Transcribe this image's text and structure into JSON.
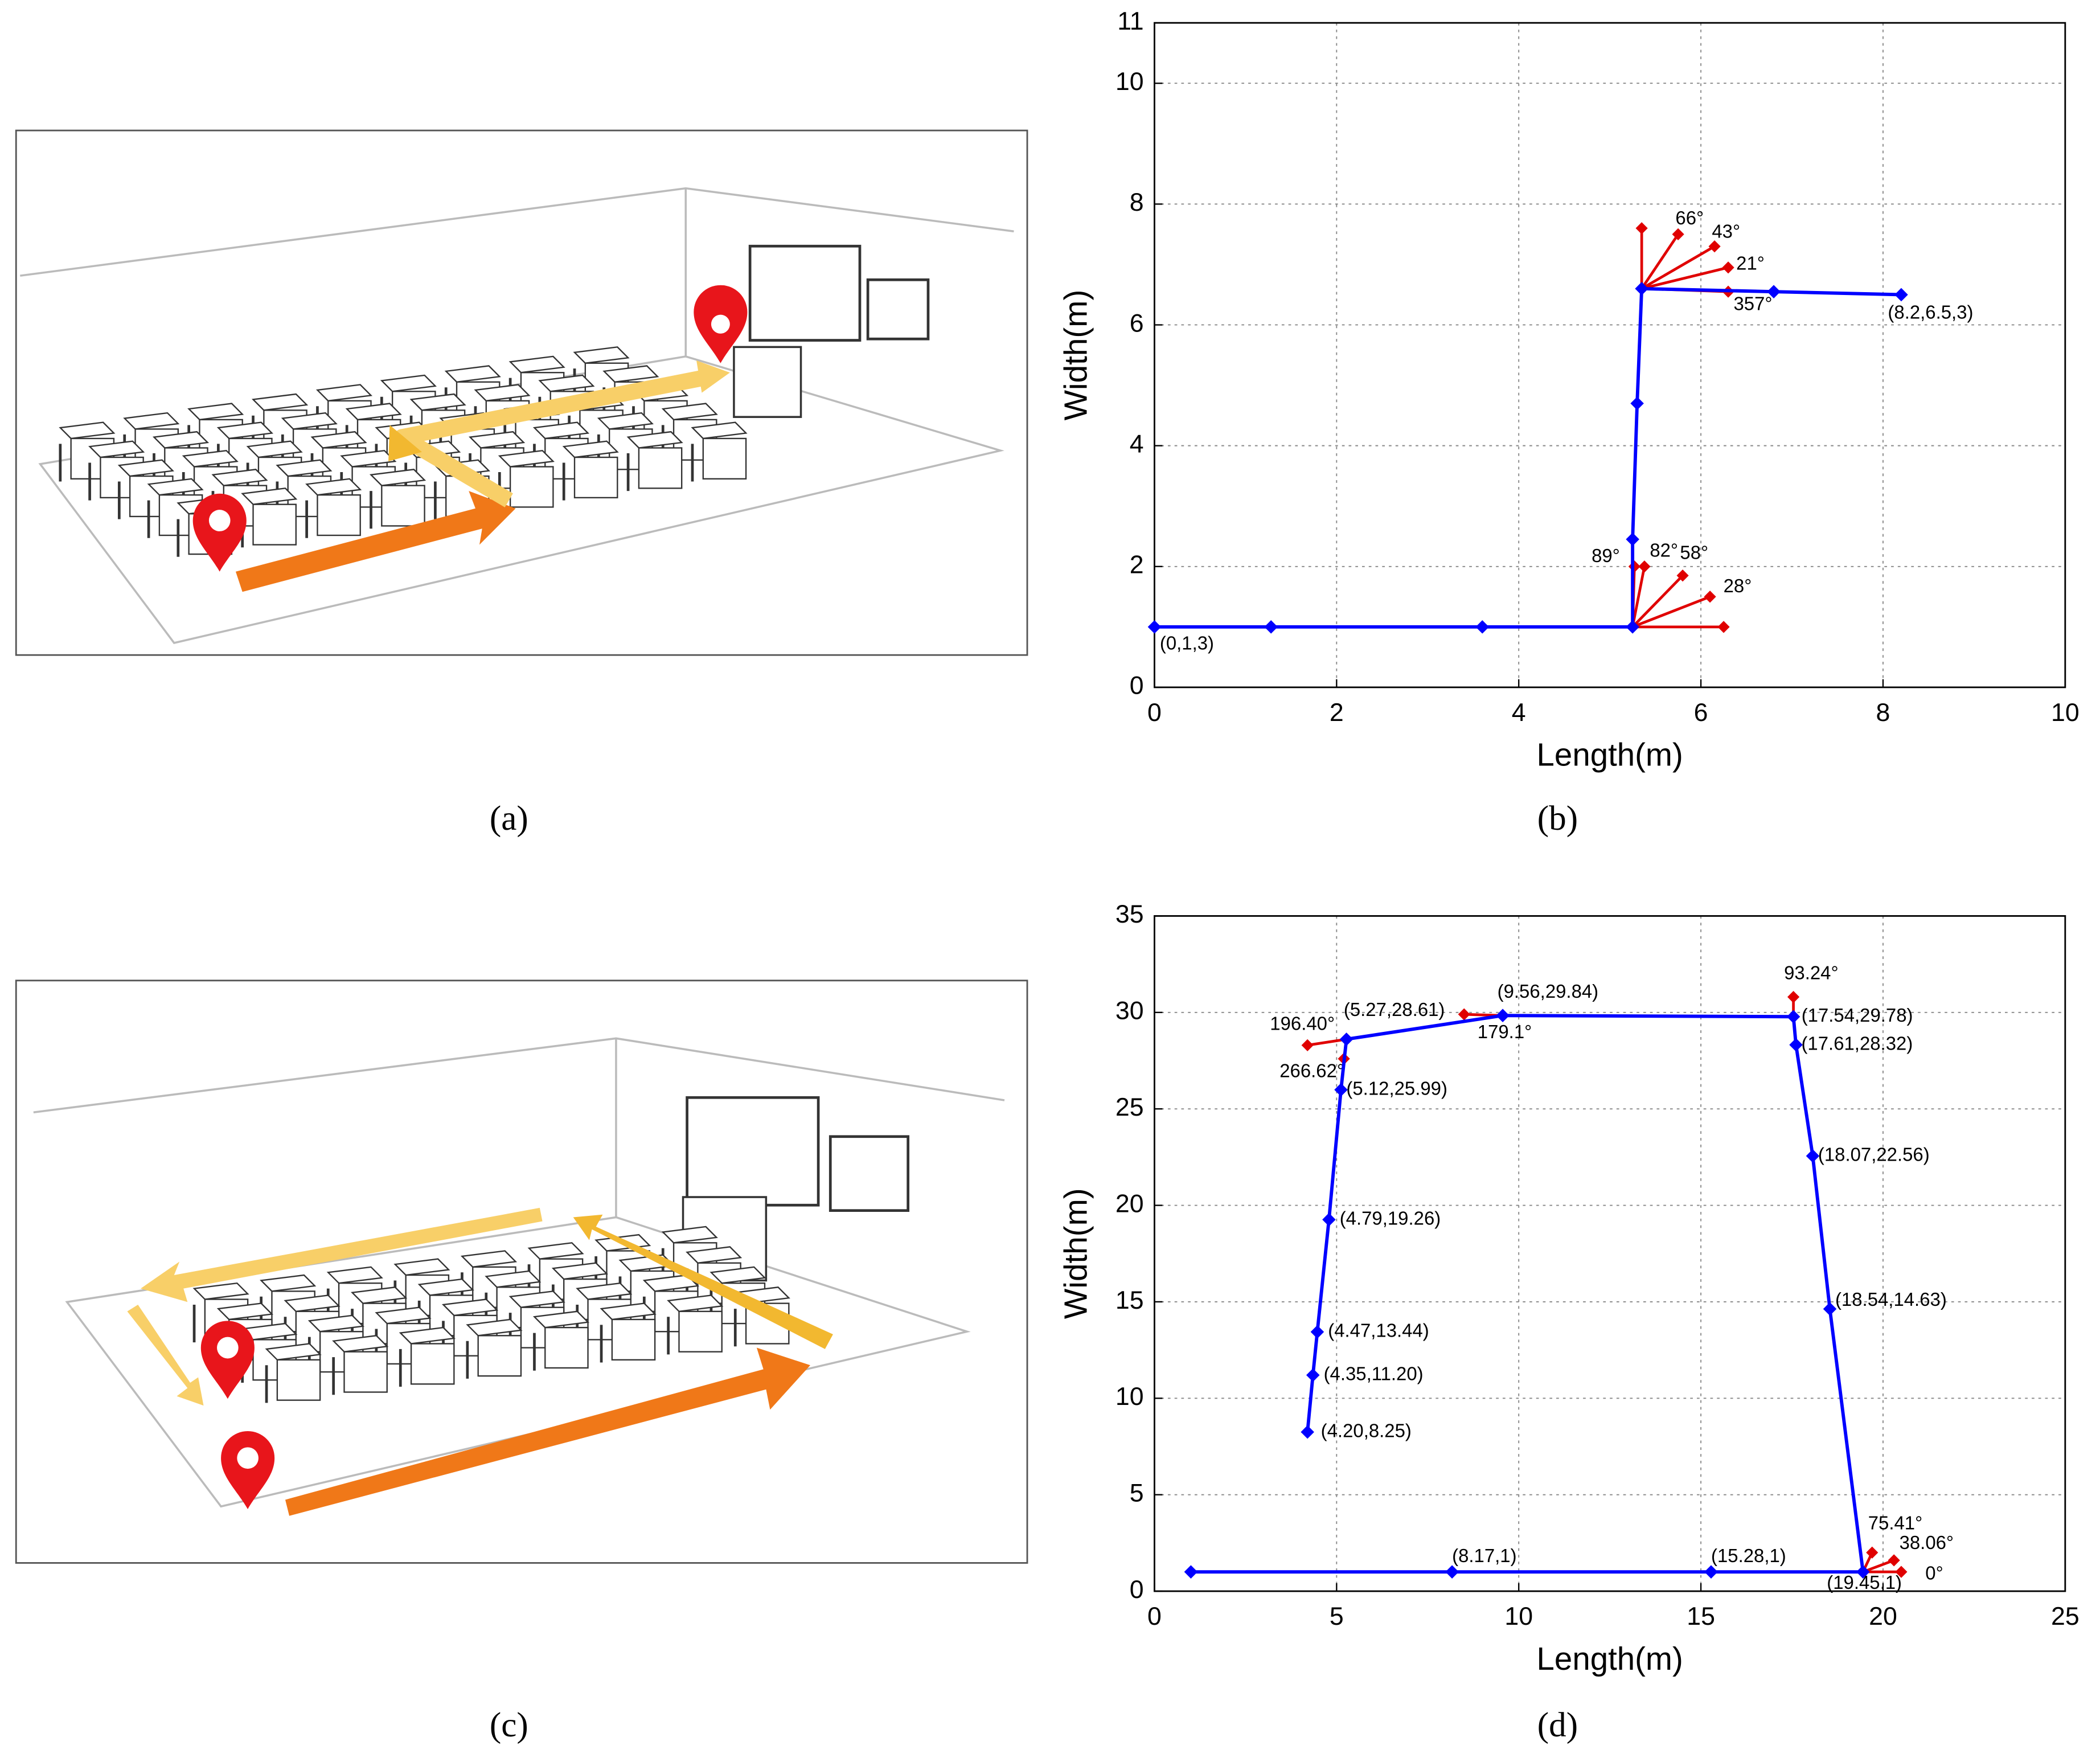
{
  "panel_labels": [
    "(a)",
    "(b)",
    "(c)",
    "(d)"
  ],
  "chart_data": [
    {
      "type": "line",
      "xlabel": "Length(m)",
      "ylabel": "Width(m)",
      "xlim": [
        0,
        10
      ],
      "ylim": [
        0,
        11
      ],
      "xticks": [
        0,
        2,
        4,
        6,
        8,
        10
      ],
      "yticks": [
        0,
        2,
        4,
        6,
        8,
        10,
        11
      ],
      "grid": true,
      "color": "#0000ff",
      "x": [
        0,
        1.28,
        3.6,
        5.25,
        5.25,
        5.3,
        5.35,
        6.8,
        8.2
      ],
      "y": [
        1,
        1,
        1,
        1,
        2.45,
        4.7,
        6.6,
        6.55,
        6.5
      ],
      "point_labels": [
        "(0,1,3)",
        null,
        null,
        null,
        null,
        null,
        null,
        null,
        "(8.2,6.5,3)"
      ],
      "rays": {
        "color": "#e00000",
        "segments": [
          {
            "x": [
              5.25,
              6.25
            ],
            "y": [
              1,
              1
            ]
          },
          {
            "x": [
              5.25,
              6.1
            ],
            "y": [
              1,
              1.5
            ],
            "label": "28°"
          },
          {
            "x": [
              5.25,
              5.8
            ],
            "y": [
              1,
              1.85
            ],
            "label": "58°"
          },
          {
            "x": [
              5.25,
              5.38
            ],
            "y": [
              1,
              2.0
            ],
            "label": "82°"
          },
          {
            "x": [
              5.25,
              5.27
            ],
            "y": [
              1,
              2.0
            ],
            "label": "89°"
          },
          {
            "x": [
              5.35,
              5.35
            ],
            "y": [
              6.6,
              7.6
            ]
          },
          {
            "x": [
              5.35,
              5.75
            ],
            "y": [
              6.6,
              7.5
            ],
            "label": "66°"
          },
          {
            "x": [
              5.35,
              6.15
            ],
            "y": [
              6.6,
              7.3
            ],
            "label": "43°"
          },
          {
            "x": [
              5.35,
              6.3
            ],
            "y": [
              6.6,
              6.95
            ],
            "label": "21°"
          },
          {
            "x": [
              5.35,
              6.3
            ],
            "y": [
              6.6,
              6.55
            ],
            "label": "357°"
          }
        ]
      }
    },
    {
      "type": "line",
      "xlabel": "Length(m)",
      "ylabel": "Width(m)",
      "xlim": [
        0,
        25
      ],
      "ylim": [
        0,
        35
      ],
      "xticks": [
        0,
        5,
        10,
        15,
        20,
        25
      ],
      "yticks": [
        0,
        5,
        10,
        15,
        20,
        25,
        30,
        35
      ],
      "grid": true,
      "color": "#0000ff",
      "x": [
        1,
        8.17,
        15.28,
        19.45,
        18.54,
        18.07,
        17.61,
        17.54,
        9.56,
        5.27,
        5.12,
        4.79,
        4.47,
        4.35,
        4.2
      ],
      "y": [
        1,
        1,
        1,
        1,
        14.63,
        22.56,
        28.32,
        29.78,
        29.84,
        28.61,
        25.99,
        19.26,
        13.44,
        11.2,
        8.25
      ],
      "point_labels": [
        null,
        "(8.17,1)",
        "(15.28,1)",
        "(19.45,1)",
        "(18.54,14.63)",
        "(18.07,22.56)",
        "(17.61,28.32)",
        "(17.54,29.78)",
        "(9.56,29.84)",
        "(5.27,28.61)",
        "(5.12,25.99)",
        "(4.79,19.26)",
        "(4.47,13.44)",
        "(4.35,11.20)",
        "(4.20,8.25)"
      ],
      "rays": {
        "color": "#e00000",
        "segments": [
          {
            "x": [
              19.45,
              20.5
            ],
            "y": [
              1,
              1
            ],
            "label": "0°"
          },
          {
            "x": [
              19.45,
              20.3
            ],
            "y": [
              1,
              1.6
            ],
            "label": "38.06°"
          },
          {
            "x": [
              19.45,
              19.7
            ],
            "y": [
              1,
              2.0
            ],
            "label": "75.41°"
          },
          {
            "x": [
              17.54,
              17.54
            ],
            "y": [
              29.78,
              30.8
            ],
            "label": "93.24°"
          },
          {
            "x": [
              9.56,
              8.5
            ],
            "y": [
              29.84,
              29.9
            ],
            "label": "179.1°"
          },
          {
            "x": [
              5.27,
              4.2
            ],
            "y": [
              28.61,
              28.3
            ],
            "label": "196.40°"
          },
          {
            "x": [
              5.27,
              5.2
            ],
            "y": [
              28.61,
              27.6
            ],
            "label": "266.62°"
          }
        ]
      }
    }
  ]
}
